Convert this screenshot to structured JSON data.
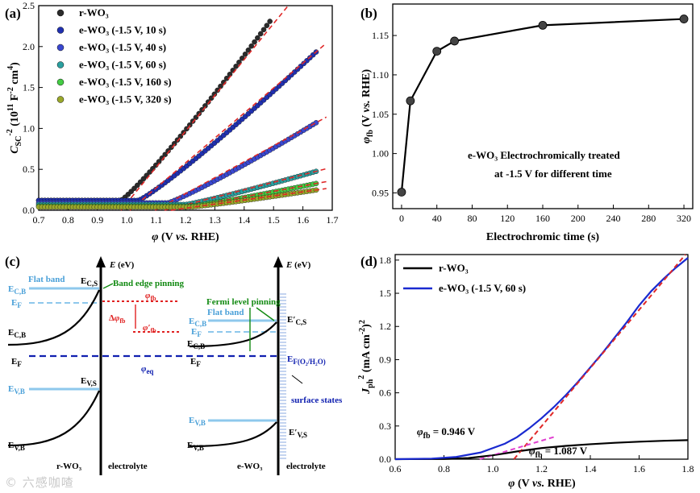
{
  "watermark": "© 六感咖喳",
  "chart_data": [
    {
      "panel": "(a)",
      "type": "scatter",
      "xlabel": "φ (V vs. RHE)",
      "ylabel": "C_SC^-2 (10^11 F^-2 cm^4)",
      "xlim": [
        0.7,
        1.7
      ],
      "ylim": [
        0,
        2.5
      ],
      "xticks": [
        "0.7",
        "0.8",
        "0.9",
        "1.0",
        "1.1",
        "1.2",
        "1.3",
        "1.4",
        "1.5",
        "1.6",
        "1.7"
      ],
      "yticks": [
        "0.0",
        "0.5",
        "1.0",
        "1.5",
        "2.0",
        "2.5"
      ],
      "legend_position": "top-left",
      "series": [
        {
          "name": "r-WO₃",
          "color": "#2b2b2b",
          "onset": 0.98,
          "base": 0.12,
          "end": 1.49,
          "end_value": 2.32,
          "fit_slope": 4.55
        },
        {
          "name": "e-WO₃  (-1.5 V, 10 s)",
          "color": "#2030b0",
          "onset": 1.04,
          "base": 0.12,
          "end": 1.65,
          "end_value": 1.95,
          "fit_slope": 3.05
        },
        {
          "name": "e-WO₃  (-1.5 V, 40 s)",
          "color": "#3a48d0",
          "onset": 1.14,
          "base": 0.09,
          "end": 1.65,
          "end_value": 1.08,
          "fit_slope": 1.95
        },
        {
          "name": "e-WO₃  (-1.5 V, 60 s)",
          "color": "#2aa0a0",
          "onset": 1.2,
          "base": 0.07,
          "end": 1.65,
          "end_value": 0.48,
          "fit_slope": 0.92
        },
        {
          "name": "e-WO₃  (-1.5 V, 160 s)",
          "color": "#44cc44",
          "onset": 1.22,
          "base": 0.05,
          "end": 1.65,
          "end_value": 0.33,
          "fit_slope": 0.66
        },
        {
          "name": "e-WO₃  (-1.5 V, 320 s)",
          "color": "#9aa82a",
          "onset": 1.22,
          "base": 0.04,
          "end": 1.65,
          "end_value": 0.25,
          "fit_slope": 0.5
        }
      ]
    },
    {
      "panel": "(b)",
      "type": "line",
      "xlabel": "Electrochromic time (s)",
      "ylabel": "φ_fb (V vs. RHE)",
      "xlim": [
        -10,
        330
      ],
      "ylim": [
        0.93,
        1.19
      ],
      "xticks": [
        "0",
        "40",
        "80",
        "120",
        "160",
        "200",
        "240",
        "280",
        "320"
      ],
      "yticks": [
        "0.95",
        "1.00",
        "1.05",
        "1.10",
        "1.15"
      ],
      "x": [
        0,
        10,
        40,
        60,
        160,
        320
      ],
      "y": [
        0.951,
        1.067,
        1.13,
        1.143,
        1.163,
        1.171
      ],
      "annotation_line1": "e-WO₃  Electrochromically treated",
      "annotation_line2": "at -1.5 V for different time"
    },
    {
      "panel": "(d)",
      "type": "line",
      "xlabel": "φ (V vs. RHE)",
      "ylabel": "J_ph^2 (mA cm^-2)^2",
      "xlim": [
        0.6,
        1.8
      ],
      "ylim": [
        0,
        1.85
      ],
      "xticks": [
        "0.6",
        "0.8",
        "1.0",
        "1.2",
        "1.4",
        "1.6",
        "1.8"
      ],
      "yticks": [
        "0.0",
        "0.3",
        "0.6",
        "0.9",
        "1.2",
        "1.5",
        "1.8"
      ],
      "series": [
        {
          "name": "r-WO₃",
          "color": "#000000",
          "x": [
            0.6,
            0.8,
            0.9,
            1.0,
            1.1,
            1.2,
            1.3,
            1.4,
            1.5,
            1.6,
            1.7,
            1.8
          ],
          "y": [
            0,
            0.002,
            0.01,
            0.035,
            0.07,
            0.1,
            0.12,
            0.135,
            0.148,
            0.158,
            0.166,
            0.172
          ]
        },
        {
          "name": "e-WO₃  (-1.5 V, 60 s)",
          "color": "#1a2ad0",
          "x": [
            0.6,
            0.75,
            0.85,
            0.95,
            1.05,
            1.1,
            1.15,
            1.2,
            1.25,
            1.3,
            1.35,
            1.4,
            1.45,
            1.5,
            1.55,
            1.6,
            1.65,
            1.7,
            1.75,
            1.8
          ],
          "y": [
            0,
            0.005,
            0.02,
            0.06,
            0.14,
            0.2,
            0.28,
            0.37,
            0.47,
            0.58,
            0.7,
            0.83,
            0.96,
            1.1,
            1.24,
            1.39,
            1.52,
            1.63,
            1.73,
            1.82
          ]
        }
      ],
      "annotation_rwo3": "φ_fb = 0.946 V",
      "annotation_ewo3": "φ_fb = 1.087 V"
    }
  ],
  "panel_labels": {
    "a": "(a)",
    "b": "(b)",
    "c": "(c)",
    "d": "(d)"
  },
  "diagram_c": {
    "E_axis": "E (eV)",
    "flat_band": "Flat band",
    "band_edge_pinning": "Band edge pinning",
    "fermi_level_pinning": "Fermi level pinning",
    "phi_eq": "φ_eq",
    "E_F_redox": "E_F(O2/H2O)",
    "surface_states": "surface states",
    "r_label": "r-WO₃",
    "e_label": "e-WO₃",
    "electrolyte": "electrolyte"
  }
}
